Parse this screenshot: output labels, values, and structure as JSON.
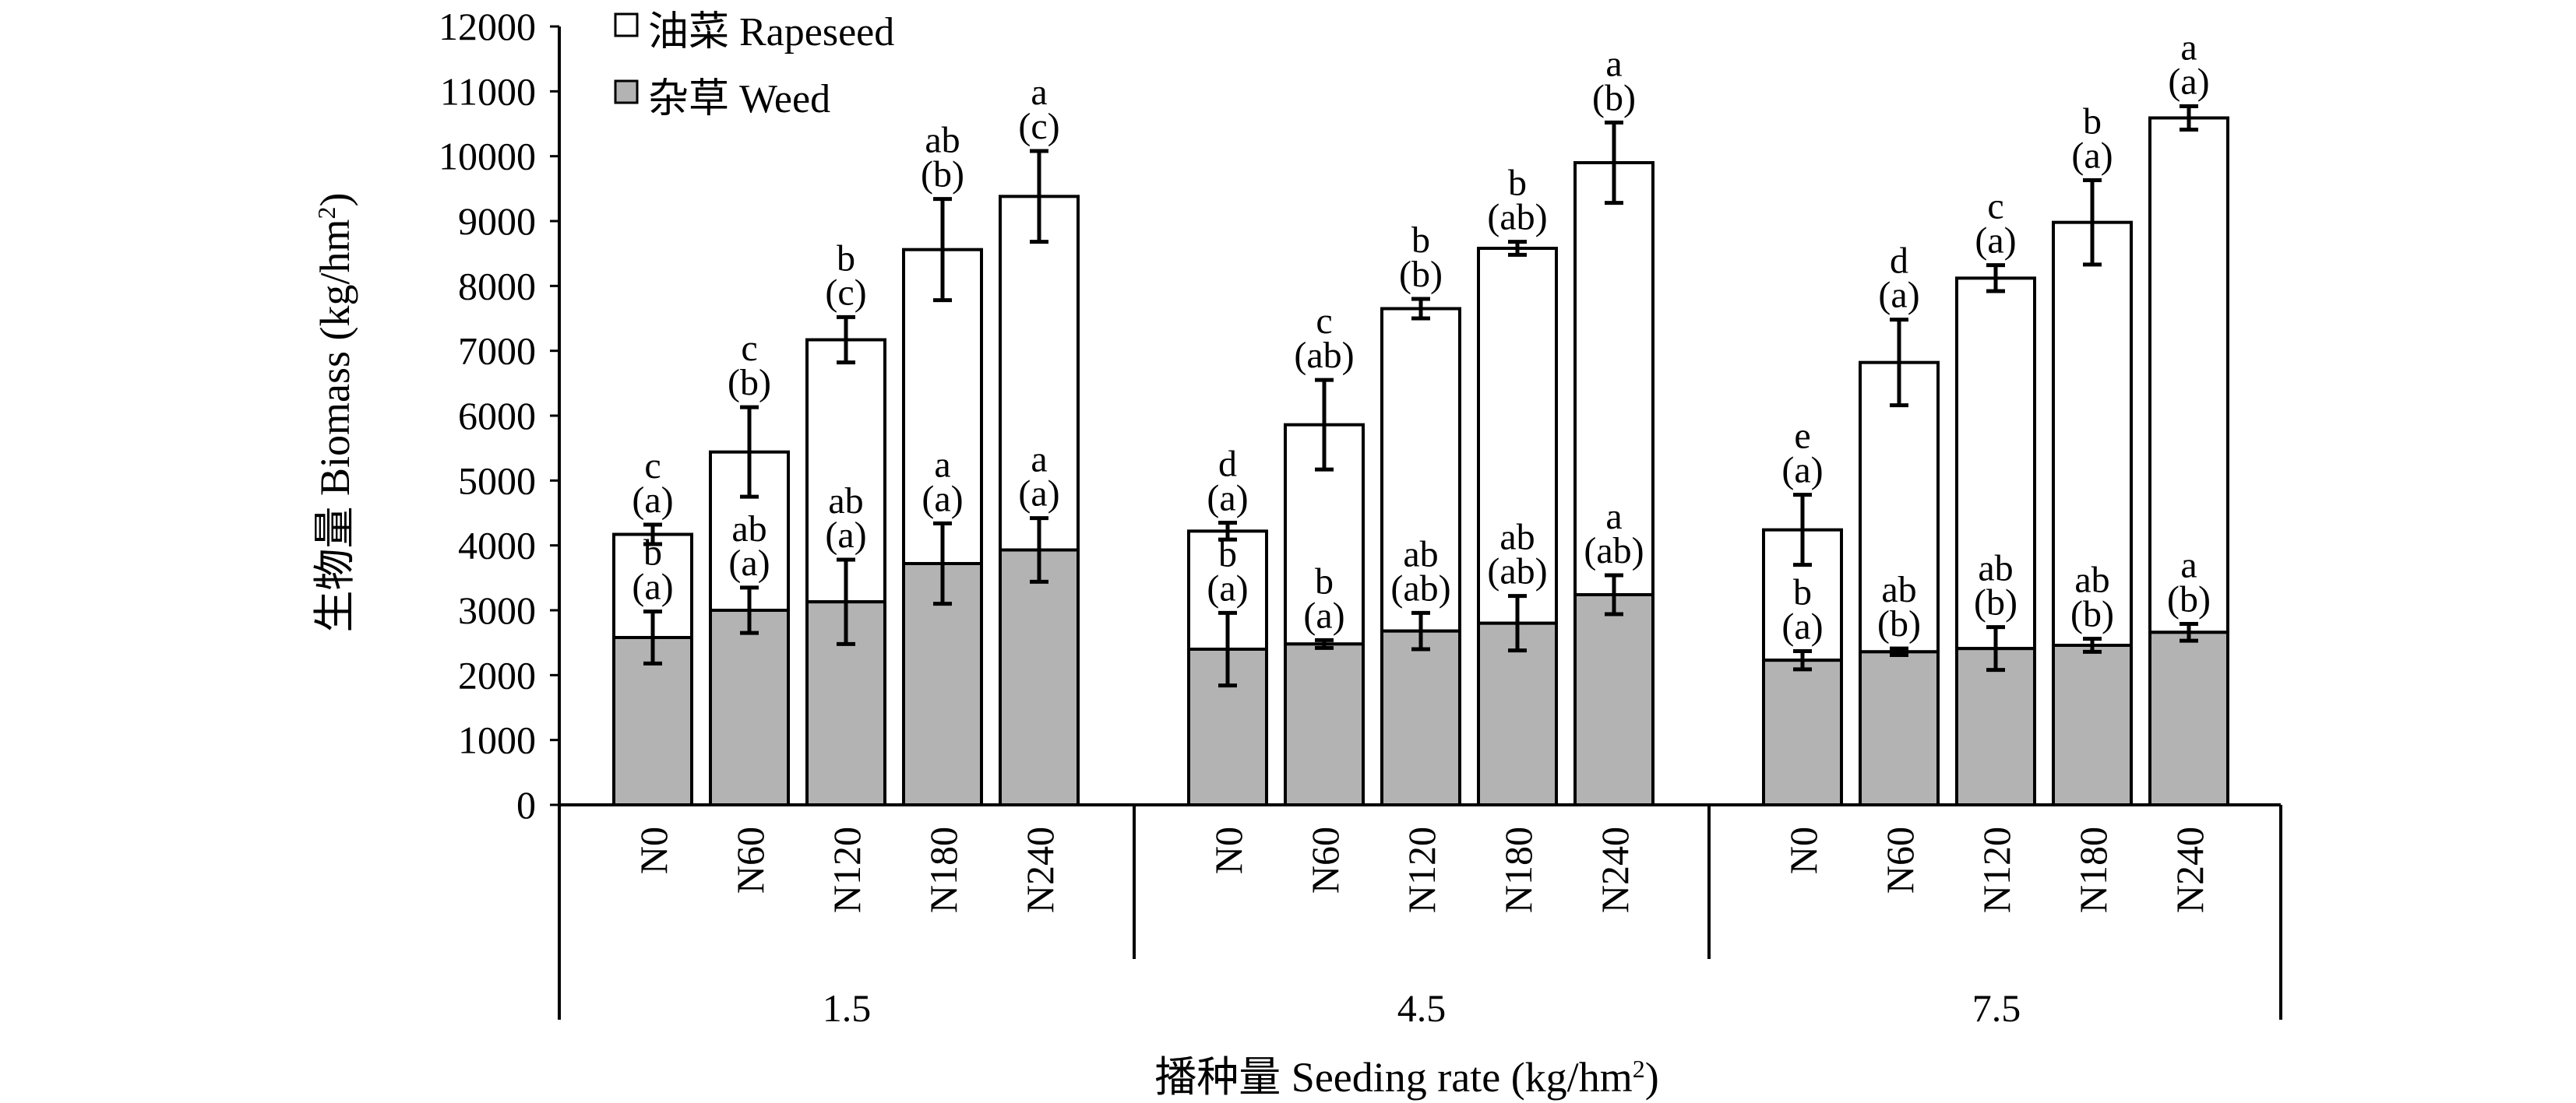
{
  "chart_data": {
    "type": "bar",
    "stacked": true,
    "title": "",
    "ylabel": "生物量 Biomass (kg/hm",
    "ylabel_sup": "2",
    "ylabel_end": ")",
    "xlabel": "播种量 Seeding rate (kg/hm",
    "xlabel_sup": "2",
    "xlabel_end": ")",
    "ylim": [
      0,
      12000
    ],
    "yticks": [
      0,
      1000,
      2000,
      3000,
      4000,
      5000,
      6000,
      7000,
      8000,
      9000,
      10000,
      11000,
      12000
    ],
    "groups": [
      "1.5",
      "4.5",
      "7.5"
    ],
    "categories": [
      "N0",
      "N60",
      "N120",
      "N180",
      "N240"
    ],
    "legend": [
      {
        "name": "油菜 Rapeseed",
        "color": "#ffffff"
      },
      {
        "name": "杂草 Weed",
        "color": "#b3b3b3"
      }
    ],
    "series": [
      {
        "name": "杂草 Weed",
        "color": "#b3b3b3",
        "values": [
          [
            2580,
            3000,
            3130,
            3720,
            3930
          ],
          [
            2400,
            2480,
            2680,
            2800,
            3240
          ],
          [
            2230,
            2360,
            2410,
            2460,
            2660
          ]
        ],
        "errors": [
          [
            400,
            350,
            650,
            620,
            490
          ],
          [
            560,
            60,
            280,
            420,
            300
          ],
          [
            140,
            50,
            330,
            100,
            130
          ]
        ],
        "labels_top": [
          [
            "b",
            "ab",
            "ab",
            "a",
            "a"
          ],
          [
            "b",
            "b",
            "ab",
            "ab",
            "a"
          ],
          [
            "b",
            "ab",
            "ab",
            "ab",
            "a"
          ]
        ],
        "labels_bottom": [
          [
            "(a)",
            "(a)",
            "(a)",
            "(a)",
            "(a)"
          ],
          [
            "(a)",
            "(a)",
            "(ab)",
            "(ab)",
            "(ab)"
          ],
          [
            "(a)",
            "(b)",
            "(b)",
            "(b)",
            "(b)"
          ]
        ]
      },
      {
        "name": "油菜 Rapeseed",
        "color": "#ffffff",
        "totals": [
          [
            4170,
            5440,
            7170,
            8560,
            9380
          ],
          [
            4220,
            5860,
            7650,
            8580,
            9900
          ],
          [
            4240,
            6820,
            8120,
            8980,
            10590
          ]
        ],
        "errors": [
          [
            150,
            690,
            350,
            780,
            700
          ],
          [
            130,
            690,
            150,
            100,
            620
          ],
          [
            540,
            660,
            200,
            650,
            180
          ]
        ],
        "labels_top": [
          [
            "c",
            "c",
            "b",
            "ab",
            "a"
          ],
          [
            "d",
            "c",
            "b",
            "b",
            "a"
          ],
          [
            "e",
            "d",
            "c",
            "b",
            "a"
          ]
        ],
        "labels_bottom": [
          [
            "(a)",
            "(b)",
            "(c)",
            "(b)",
            "(c)"
          ],
          [
            "(a)",
            "(ab)",
            "(b)",
            "(ab)",
            "(b)"
          ],
          [
            "(a)",
            "(a)",
            "(a)",
            "(a)",
            "(a)"
          ]
        ]
      }
    ]
  }
}
